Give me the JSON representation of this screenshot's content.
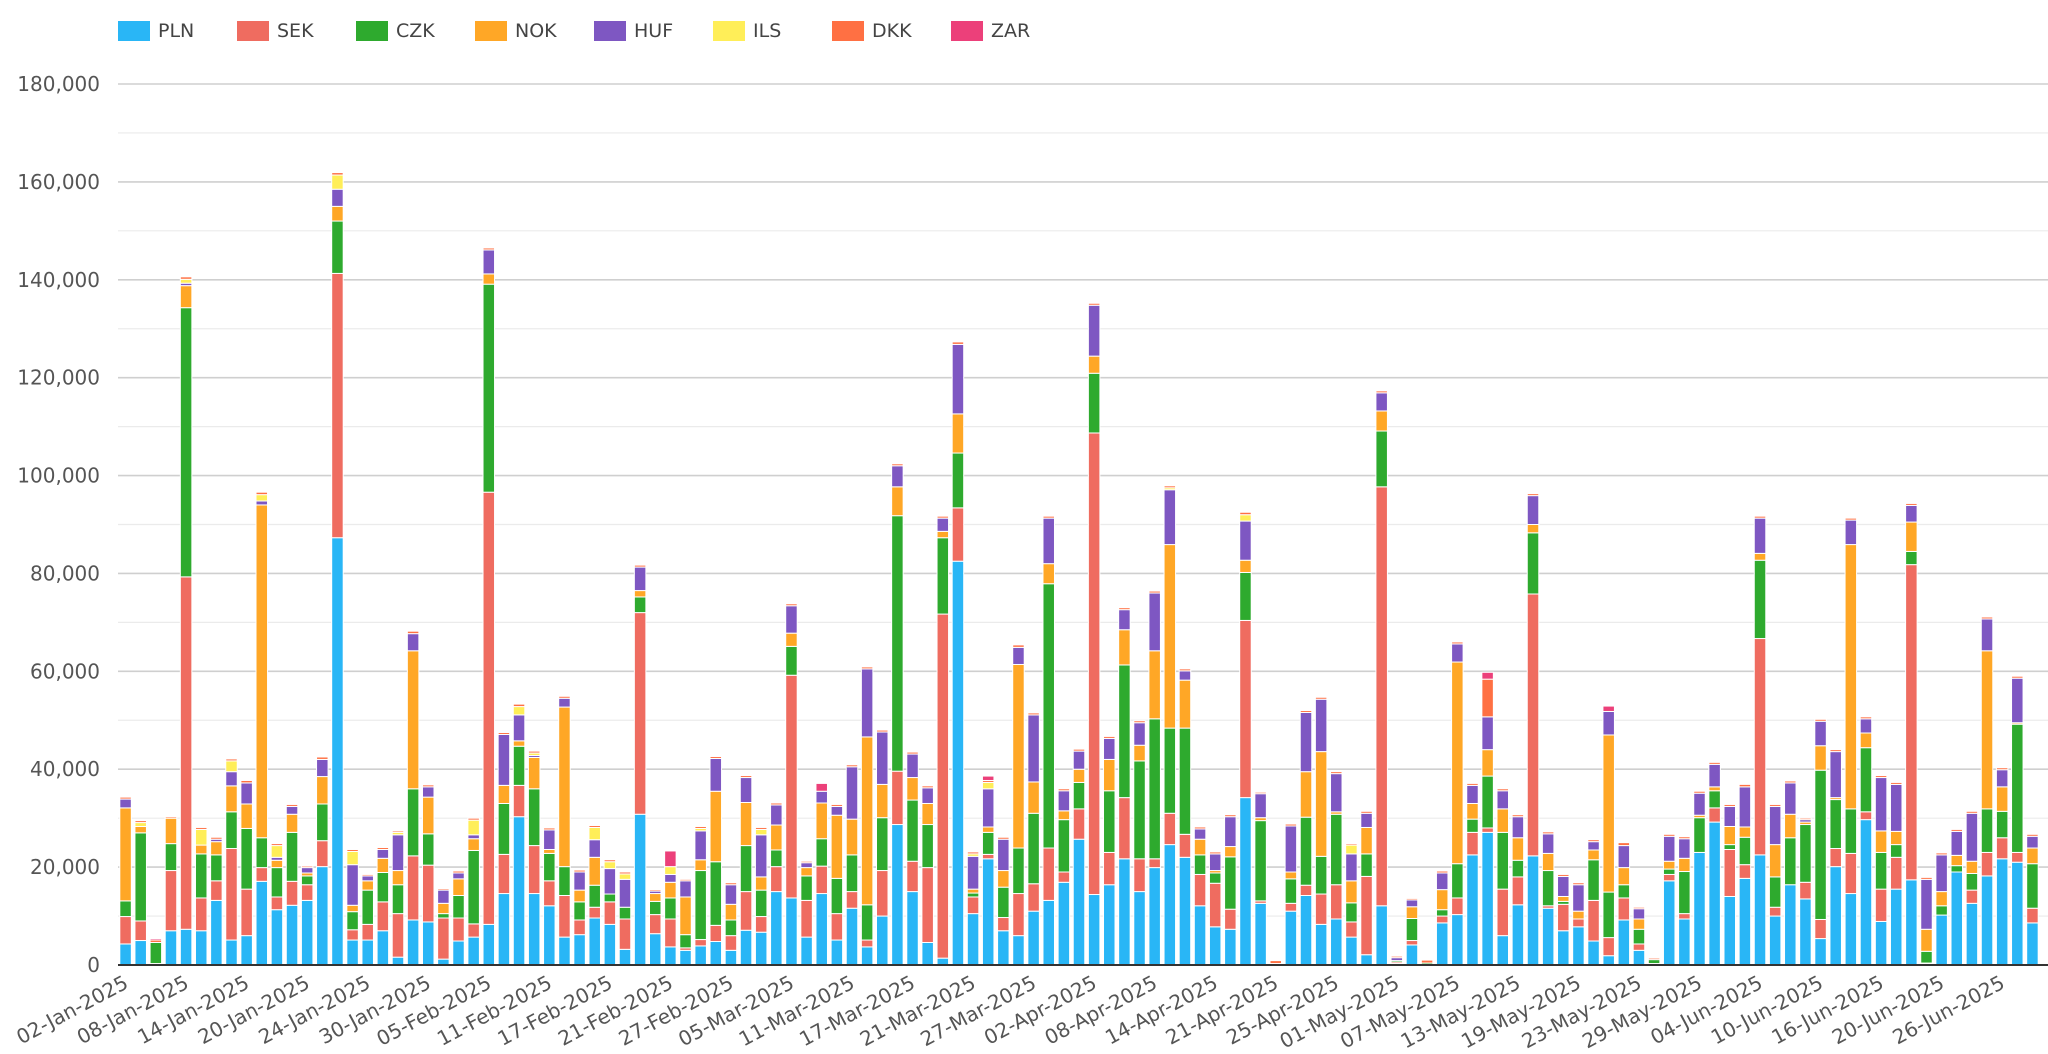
{
  "legend": [
    {
      "name": "PLN",
      "color": "#29b6f6"
    },
    {
      "name": "SEK",
      "color": "#ef6c60"
    },
    {
      "name": "CZK",
      "color": "#2eaa2e"
    },
    {
      "name": "NOK",
      "color": "#ffa726"
    },
    {
      "name": "HUF",
      "color": "#7e57c2"
    },
    {
      "name": "ILS",
      "color": "#ffee58"
    },
    {
      "name": "DKK",
      "color": "#ff7043"
    },
    {
      "name": "ZAR",
      "color": "#ec407a"
    }
  ],
  "chart_data": {
    "type": "bar",
    "stacked": true,
    "title": "",
    "xlabel": "",
    "ylabel": "",
    "ylim": [
      0,
      180000
    ],
    "y_ticks": [
      "0",
      "20,000",
      "40,000",
      "60,000",
      "80,000",
      "100,000",
      "120,000",
      "140,000",
      "160,000",
      "180,000"
    ],
    "grid": true,
    "legend_position": "top-left",
    "x_tick_labels": [
      "02-Jan-2025",
      "08-Jan-2025",
      "14-Jan-2025",
      "20-Jan-2025",
      "24-Jan-2025",
      "30-Jan-2025",
      "05-Feb-2025",
      "11-Feb-2025",
      "17-Feb-2025",
      "21-Feb-2025",
      "27-Feb-2025",
      "05-Mar-2025",
      "11-Mar-2025",
      "17-Mar-2025",
      "21-Mar-2025",
      "27-Mar-2025",
      "02-Apr-2025",
      "08-Apr-2025",
      "14-Apr-2025",
      "21-Apr-2025",
      "25-Apr-2025",
      "01-May-2025",
      "07-May-2025",
      "13-May-2025",
      "19-May-2025",
      "23-May-2025",
      "29-May-2025",
      "04-Jun-2025",
      "10-Jun-2025",
      "16-Jun-2025",
      "20-Jun-2025",
      "26-Jun-2025"
    ],
    "series_names": [
      "PLN",
      "SEK",
      "CZK",
      "NOK",
      "HUF",
      "ILS",
      "DKK",
      "ZAR"
    ],
    "categories": [
      "02-Jan-2025",
      "03-Jan-2025",
      "06-Jan-2025",
      "07-Jan-2025",
      "08-Jan-2025",
      "09-Jan-2025",
      "10-Jan-2025",
      "13-Jan-2025",
      "14-Jan-2025",
      "15-Jan-2025",
      "16-Jan-2025",
      "17-Jan-2025",
      "20-Jan-2025",
      "21-Jan-2025",
      "22-Jan-2025",
      "23-Jan-2025",
      "24-Jan-2025",
      "27-Jan-2025",
      "28-Jan-2025",
      "29-Jan-2025",
      "30-Jan-2025",
      "31-Jan-2025",
      "03-Feb-2025",
      "04-Feb-2025",
      "05-Feb-2025",
      "06-Feb-2025",
      "07-Feb-2025",
      "10-Feb-2025",
      "11-Feb-2025",
      "12-Feb-2025",
      "13-Feb-2025",
      "14-Feb-2025",
      "17-Feb-2025",
      "18-Feb-2025",
      "19-Feb-2025",
      "20-Feb-2025",
      "21-Feb-2025",
      "24-Feb-2025",
      "25-Feb-2025",
      "26-Feb-2025",
      "27-Feb-2025",
      "28-Feb-2025",
      "03-Mar-2025",
      "04-Mar-2025",
      "05-Mar-2025",
      "06-Mar-2025",
      "07-Mar-2025",
      "10-Mar-2025",
      "11-Mar-2025",
      "12-Mar-2025",
      "13-Mar-2025",
      "14-Mar-2025",
      "17-Mar-2025",
      "18-Mar-2025",
      "19-Mar-2025",
      "20-Mar-2025",
      "21-Mar-2025",
      "24-Mar-2025",
      "25-Mar-2025",
      "26-Mar-2025",
      "27-Mar-2025",
      "28-Mar-2025",
      "31-Mar-2025",
      "01-Apr-2025",
      "02-Apr-2025",
      "03-Apr-2025",
      "04-Apr-2025",
      "07-Apr-2025",
      "08-Apr-2025",
      "09-Apr-2025",
      "10-Apr-2025",
      "11-Apr-2025",
      "14-Apr-2025",
      "15-Apr-2025",
      "16-Apr-2025",
      "17-Apr-2025",
      "21-Apr-2025",
      "22-Apr-2025",
      "23-Apr-2025",
      "24-Apr-2025",
      "25-Apr-2025",
      "28-Apr-2025",
      "29-Apr-2025",
      "30-Apr-2025",
      "01-May-2025",
      "02-May-2025",
      "05-May-2025",
      "06-May-2025",
      "07-May-2025",
      "08-May-2025",
      "09-May-2025",
      "12-May-2025",
      "13-May-2025",
      "14-May-2025",
      "15-May-2025",
      "16-May-2025",
      "19-May-2025",
      "20-May-2025",
      "21-May-2025",
      "22-May-2025",
      "23-May-2025",
      "26-May-2025",
      "27-May-2025",
      "28-May-2025",
      "29-May-2025",
      "30-May-2025",
      "02-Jun-2025",
      "03-Jun-2025",
      "04-Jun-2025",
      "05-Jun-2025",
      "06-Jun-2025",
      "09-Jun-2025",
      "10-Jun-2025",
      "11-Jun-2025",
      "12-Jun-2025",
      "13-Jun-2025",
      "16-Jun-2025",
      "17-Jun-2025",
      "18-Jun-2025",
      "19-Jun-2025",
      "20-Jun-2025",
      "23-Jun-2025",
      "24-Jun-2025",
      "25-Jun-2025",
      "26-Jun-2025",
      "27-Jun-2025",
      "30-Jun-2025"
    ],
    "values": [
      [
        4300,
        5600,
        3200,
        19000,
        1800,
        0,
        400,
        0
      ],
      [
        5000,
        4000,
        18000,
        1300,
        0,
        800,
        400,
        0
      ],
      [
        0,
        300,
        4300,
        0,
        0,
        0,
        500,
        300
      ],
      [
        7000,
        12300,
        5500,
        5200,
        0,
        0,
        300,
        0
      ],
      [
        7300,
        72000,
        55000,
        4500,
        500,
        800,
        500,
        0
      ],
      [
        7000,
        6700,
        9000,
        1800,
        0,
        3200,
        400,
        0
      ],
      [
        13200,
        4000,
        5300,
        2700,
        500,
        0,
        400,
        0
      ],
      [
        5100,
        18700,
        7500,
        5300,
        2900,
        2200,
        400,
        0
      ],
      [
        6000,
        9500,
        12400,
        5000,
        4300,
        0,
        500,
        0
      ],
      [
        17100,
        2800,
        6100,
        68000,
        800,
        1300,
        500,
        0
      ],
      [
        11300,
        2600,
        6000,
        1500,
        600,
        2400,
        400,
        0
      ],
      [
        12200,
        4900,
        10000,
        3700,
        1600,
        0,
        400,
        0
      ],
      [
        13200,
        3200,
        1800,
        600,
        1100,
        0,
        300,
        0
      ],
      [
        20100,
        5300,
        7500,
        5600,
        3500,
        0,
        500,
        0
      ],
      [
        87300,
        54000,
        10700,
        3000,
        3500,
        2900,
        500,
        0
      ],
      [
        5100,
        2100,
        3700,
        1300,
        8300,
        2700,
        400,
        0
      ],
      [
        5100,
        3200,
        7000,
        1900,
        1000,
        0,
        300,
        0
      ],
      [
        7000,
        5900,
        6000,
        2900,
        1800,
        0,
        400,
        0
      ],
      [
        1600,
        8900,
        5900,
        2900,
        7300,
        500,
        300,
        0
      ],
      [
        9200,
        13100,
        13700,
        28200,
        3500,
        0,
        500,
        0
      ],
      [
        8800,
        11600,
        6400,
        7500,
        2100,
        0,
        400,
        0
      ],
      [
        1200,
        8400,
        900,
        2100,
        2700,
        0,
        300,
        0
      ],
      [
        4900,
        4700,
        4600,
        3400,
        1200,
        0,
        400,
        0
      ],
      [
        5700,
        2700,
        15000,
        2400,
        800,
        3000,
        400,
        0
      ],
      [
        8300,
        88300,
        42500,
        2100,
        4900,
        0,
        400,
        0
      ],
      [
        14600,
        8000,
        10400,
        3700,
        10400,
        0,
        400,
        0
      ],
      [
        30300,
        6400,
        8000,
        1100,
        5300,
        1700,
        500,
        0
      ],
      [
        14600,
        9800,
        11600,
        6400,
        400,
        500,
        400,
        0
      ],
      [
        12100,
        5100,
        5600,
        800,
        4000,
        0,
        400,
        0
      ],
      [
        5700,
        8500,
        5900,
        32600,
        1800,
        0,
        400,
        0
      ],
      [
        6200,
        3000,
        3700,
        2400,
        3700,
        0,
        400,
        0
      ],
      [
        9600,
        2200,
        4500,
        5700,
        3600,
        2500,
        400,
        0
      ],
      [
        8300,
        4600,
        1600,
        0,
        5200,
        1400,
        400,
        0
      ],
      [
        3200,
        6200,
        2400,
        0,
        5700,
        1100,
        400,
        0
      ],
      [
        30800,
        41200,
        3200,
        1300,
        4800,
        0,
        400,
        0
      ],
      [
        6400,
        3900,
        2700,
        1600,
        500,
        0,
        300,
        0
      ],
      [
        3700,
        5700,
        4300,
        3200,
        1600,
        1600,
        0,
        3200
      ],
      [
        3000,
        500,
        2700,
        7700,
        3300,
        0,
        300,
        0
      ],
      [
        3900,
        1300,
        14100,
        2200,
        5900,
        500,
        400,
        0
      ],
      [
        4800,
        3300,
        13000,
        14400,
        6700,
        0,
        400,
        0
      ],
      [
        3000,
        3000,
        3200,
        3200,
        4000,
        0,
        400,
        0
      ],
      [
        7100,
        7900,
        9400,
        8800,
        5100,
        0,
        400,
        0
      ],
      [
        6700,
        3200,
        5400,
        2700,
        8600,
        1100,
        400,
        0
      ],
      [
        15000,
        5100,
        3400,
        5100,
        4100,
        0,
        400,
        0
      ],
      [
        13700,
        45500,
        5900,
        2700,
        5600,
        0,
        400,
        0
      ],
      [
        5700,
        7500,
        5000,
        1700,
        1000,
        0,
        300,
        0
      ],
      [
        14600,
        5600,
        5600,
        7300,
        2400,
        0,
        0,
        1600
      ],
      [
        5100,
        5400,
        7200,
        12900,
        1800,
        0,
        400,
        0
      ],
      [
        11600,
        3400,
        7500,
        7300,
        10700,
        0,
        400,
        0
      ],
      [
        3700,
        1400,
        7200,
        34300,
        13900,
        0,
        400,
        0
      ],
      [
        10000,
        9300,
        10800,
        6800,
        10700,
        0,
        400,
        0
      ],
      [
        28700,
        10900,
        52200,
        5900,
        4300,
        0,
        400,
        0
      ],
      [
        15000,
        6200,
        12500,
        4600,
        4800,
        0,
        400,
        0
      ],
      [
        4600,
        15300,
        8800,
        4300,
        3200,
        0,
        400,
        0
      ],
      [
        1400,
        70300,
        15600,
        1300,
        2700,
        0,
        400,
        0
      ],
      [
        82500,
        10900,
        11200,
        8000,
        14200,
        0,
        500,
        0
      ],
      [
        10500,
        3400,
        800,
        800,
        6700,
        500,
        400,
        0
      ],
      [
        21700,
        900,
        4500,
        1100,
        7800,
        1300,
        400,
        900
      ],
      [
        7000,
        2700,
        6200,
        3400,
        6400,
        0,
        400,
        0
      ],
      [
        6000,
        8600,
        9300,
        37500,
        3500,
        0,
        500,
        0
      ],
      [
        11000,
        5600,
        14400,
        6400,
        13700,
        0,
        400,
        0
      ],
      [
        13200,
        10700,
        54000,
        4100,
        9300,
        0,
        400,
        0
      ],
      [
        16900,
        2100,
        10700,
        1800,
        4100,
        0,
        400,
        0
      ],
      [
        25700,
        6200,
        5400,
        2700,
        3700,
        0,
        400,
        0
      ],
      [
        14400,
        94300,
        12200,
        3500,
        10400,
        0,
        400,
        0
      ],
      [
        16400,
        6600,
        12600,
        6400,
        4300,
        0,
        400,
        0
      ],
      [
        21700,
        12500,
        27100,
        7200,
        4100,
        0,
        400,
        0
      ],
      [
        15000,
        6700,
        20000,
        3200,
        4600,
        0,
        400,
        0
      ],
      [
        19900,
        1800,
        28600,
        13900,
        11800,
        0,
        400,
        0
      ],
      [
        24600,
        6400,
        17400,
        37500,
        11200,
        400,
        400,
        0
      ],
      [
        22000,
        4700,
        21700,
        9800,
        1900,
        0,
        400,
        0
      ],
      [
        12100,
        6400,
        4000,
        3200,
        2100,
        0,
        400,
        0
      ],
      [
        7800,
        8900,
        2100,
        500,
        3400,
        0,
        400,
        0
      ],
      [
        7300,
        4100,
        10700,
        2100,
        6100,
        0,
        400,
        0
      ],
      [
        34200,
        36200,
        9800,
        2500,
        8000,
        1300,
        500,
        0
      ],
      [
        12600,
        500,
        16400,
        600,
        4900,
        0,
        300,
        0
      ],
      [
        0,
        0,
        300,
        0,
        0,
        0,
        600,
        0
      ],
      [
        11000,
        1600,
        5000,
        1400,
        9400,
        0,
        400,
        0
      ],
      [
        14200,
        2100,
        13900,
        9300,
        12100,
        0,
        400,
        0
      ],
      [
        8300,
        6200,
        7700,
        21400,
        10700,
        0,
        400,
        0
      ],
      [
        9400,
        7000,
        14400,
        500,
        7800,
        0,
        400,
        0
      ],
      [
        5700,
        3100,
        3900,
        4500,
        5500,
        1800,
        300,
        0
      ],
      [
        2100,
        16000,
        4600,
        5400,
        2900,
        0,
        400,
        0
      ],
      [
        12100,
        85600,
        11400,
        4100,
        3700,
        0,
        400,
        0
      ],
      [
        300,
        300,
        300,
        0,
        600,
        0,
        300,
        0
      ],
      [
        4100,
        900,
        4500,
        2400,
        1400,
        0,
        300,
        0
      ],
      [
        0,
        0,
        400,
        0,
        0,
        0,
        600,
        0
      ],
      [
        8600,
        1400,
        1300,
        4100,
        3400,
        0,
        400,
        0
      ],
      [
        10300,
        3400,
        7000,
        41200,
        3700,
        0,
        400,
        0
      ],
      [
        22500,
        4600,
        2700,
        3200,
        3700,
        0,
        400,
        0
      ],
      [
        27100,
        900,
        10600,
        5400,
        6700,
        0,
        7700,
        1400
      ],
      [
        6000,
        9500,
        11600,
        4800,
        3700,
        0,
        400,
        0
      ],
      [
        12300,
        5700,
        3400,
        4600,
        4300,
        0,
        400,
        0
      ],
      [
        22300,
        53500,
        12500,
        1700,
        5900,
        0,
        400,
        0
      ],
      [
        11600,
        500,
        7200,
        3500,
        4000,
        0,
        400,
        0
      ],
      [
        7000,
        5400,
        600,
        1000,
        4100,
        0,
        400,
        0
      ],
      [
        7800,
        1600,
        0,
        1600,
        5400,
        0,
        400,
        0
      ],
      [
        4900,
        8300,
        8300,
        2000,
        1700,
        0,
        400,
        0
      ],
      [
        1900,
        3700,
        9300,
        32100,
        4800,
        0,
        0,
        1100
      ],
      [
        9200,
        4500,
        2700,
        3500,
        4500,
        0,
        600,
        0
      ],
      [
        3000,
        1300,
        3000,
        2100,
        2100,
        0,
        300,
        0
      ],
      [
        0,
        300,
        800,
        0,
        0,
        0,
        300,
        0
      ],
      [
        17200,
        1300,
        1100,
        1600,
        5100,
        0,
        400,
        0
      ],
      [
        9400,
        1100,
        8600,
        2700,
        4000,
        0,
        400,
        0
      ],
      [
        23000,
        0,
        7100,
        500,
        4500,
        0,
        400,
        0
      ],
      [
        29200,
        2900,
        3500,
        800,
        4600,
        0,
        400,
        0
      ],
      [
        14000,
        9600,
        1000,
        3700,
        4100,
        0,
        400,
        0
      ],
      [
        17700,
        2800,
        5600,
        2100,
        8200,
        0,
        500,
        0
      ],
      [
        22500,
        44200,
        16000,
        1400,
        7200,
        0,
        400,
        0
      ],
      [
        10000,
        1800,
        6200,
        6600,
        7800,
        0,
        400,
        0
      ],
      [
        16400,
        0,
        9600,
        4800,
        6400,
        0,
        400,
        0
      ],
      [
        13500,
        3400,
        11800,
        500,
        500,
        0,
        300,
        0
      ],
      [
        5400,
        3900,
        30500,
        5000,
        5000,
        0,
        400,
        0
      ],
      [
        20100,
        3700,
        10000,
        400,
        9400,
        0,
        400,
        0
      ],
      [
        14600,
        8200,
        9100,
        54000,
        5000,
        0,
        400,
        0
      ],
      [
        29700,
        1600,
        13100,
        3000,
        2900,
        0,
        400,
        0
      ],
      [
        8900,
        6600,
        7500,
        4400,
        10900,
        0,
        400,
        0
      ],
      [
        15500,
        6500,
        2600,
        2700,
        9600,
        0,
        400,
        0
      ],
      [
        17400,
        64400,
        2700,
        6000,
        3400,
        0,
        400,
        0
      ],
      [
        200,
        200,
        2400,
        4500,
        10200,
        0,
        400,
        0
      ],
      [
        10200,
        0,
        1900,
        2900,
        7500,
        0,
        400,
        0
      ],
      [
        19000,
        0,
        1300,
        2100,
        4900,
        0,
        400,
        0
      ],
      [
        12600,
        2700,
        3400,
        2500,
        9800,
        0,
        400,
        0
      ],
      [
        18200,
        4800,
        8900,
        32300,
        6500,
        0,
        400,
        0
      ],
      [
        21700,
        4300,
        5400,
        5000,
        3500,
        0,
        400,
        0
      ],
      [
        21000,
        2000,
        26200,
        300,
        9100,
        0,
        400,
        0
      ],
      [
        8600,
        3000,
        9100,
        3200,
        2400,
        0,
        400,
        0
      ]
    ]
  }
}
